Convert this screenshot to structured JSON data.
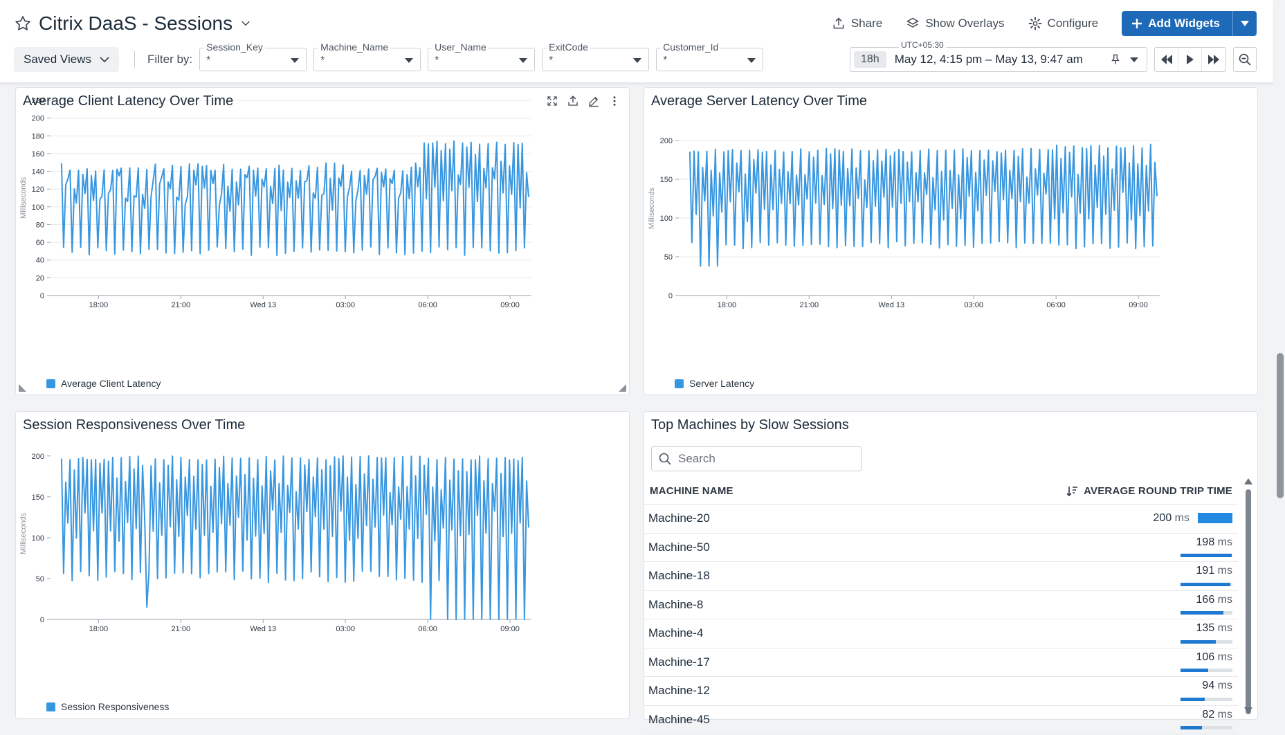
{
  "header": {
    "title": "Citrix DaaS - Sessions",
    "actions": {
      "share": "Share",
      "overlays": "Show Overlays",
      "configure": "Configure",
      "add_widgets": "Add Widgets"
    }
  },
  "filters": {
    "saved_views": "Saved Views",
    "filter_by": "Filter by:",
    "items": [
      {
        "label": "Session_Key",
        "value": "*"
      },
      {
        "label": "Machine_Name",
        "value": "*"
      },
      {
        "label": "User_Name",
        "value": "*"
      },
      {
        "label": "ExitCode",
        "value": "*"
      },
      {
        "label": "Customer_Id",
        "value": "*"
      }
    ]
  },
  "timeframe": {
    "timezone": "UTC+05:30",
    "duration": "18h",
    "range": "May 12, 4:15 pm – May 13, 9:47 am"
  },
  "colors": {
    "accent": "#1e6ab8",
    "series": "#3796e0"
  },
  "widgets": {
    "client": {
      "title": "Average Client Latency Over Time",
      "legend": "Average Client Latency",
      "ylabel": "Milliseconds"
    },
    "server": {
      "title": "Average Server Latency Over Time",
      "legend": "Server Latency",
      "ylabel": "Milliseconds"
    },
    "responsiveness": {
      "title": "Session Responsiveness Over Time",
      "legend": "Session Responsiveness",
      "ylabel": "Milliseconds"
    },
    "machines": {
      "title": "Top Machines by Slow Sessions",
      "search_placeholder": "Search",
      "col_name": "MACHINE NAME",
      "col_value": "AVERAGE ROUND TRIP TIME",
      "unit": "ms",
      "rows": [
        {
          "name": "Machine-20",
          "value": "200",
          "fraction": 1.0
        },
        {
          "name": "Machine-50",
          "value": "198",
          "fraction": 0.99
        },
        {
          "name": "Machine-18",
          "value": "191",
          "fraction": 0.955
        },
        {
          "name": "Machine-8",
          "value": "166",
          "fraction": 0.83
        },
        {
          "name": "Machine-4",
          "value": "135",
          "fraction": 0.675
        },
        {
          "name": "Machine-17",
          "value": "106",
          "fraction": 0.53
        },
        {
          "name": "Machine-12",
          "value": "94",
          "fraction": 0.47
        },
        {
          "name": "Machine-45",
          "value": "82",
          "fraction": 0.41
        }
      ]
    }
  },
  "chart_data": [
    {
      "id": "client",
      "type": "line",
      "title": "Average Client Latency Over Time",
      "ylabel": "Milliseconds",
      "ylim": [
        0,
        220
      ],
      "yticks": [
        0,
        20,
        40,
        60,
        80,
        100,
        120,
        140,
        160,
        180,
        200,
        220
      ],
      "xlim": [
        0,
        17.53
      ],
      "xtick_labels": [
        "18:00",
        "21:00",
        "Wed 13",
        "03:00",
        "06:00",
        "09:00"
      ],
      "xtick_values": [
        1.75,
        4.75,
        7.75,
        10.75,
        13.75,
        16.75
      ],
      "grid": true,
      "series": [
        {
          "name": "Average Client Latency",
          "pattern": {
            "points": 220,
            "low": [
              45,
              55
            ],
            "high": [
              140,
              150
            ],
            "late_high": [
              170,
              175
            ],
            "late_from": 13.6
          }
        }
      ]
    },
    {
      "id": "server",
      "type": "line",
      "title": "Average Server Latency Over Time",
      "ylabel": "Milliseconds",
      "ylim": [
        0,
        225
      ],
      "yticks": [
        0,
        50,
        100,
        150,
        200
      ],
      "xlim": [
        0,
        17.53
      ],
      "xtick_labels": [
        "18:00",
        "21:00",
        "Wed 13",
        "03:00",
        "06:00",
        "09:00"
      ],
      "xtick_values": [
        1.75,
        4.75,
        7.75,
        10.75,
        13.75,
        16.75
      ],
      "grid": true,
      "series": [
        {
          "name": "Server Latency",
          "pattern": {
            "points": 220,
            "low": [
              60,
              70
            ],
            "high": [
              185,
              190
            ],
            "late_high": [
              190,
              195
            ],
            "late_from": 13.5
          }
        }
      ]
    },
    {
      "id": "responsiveness",
      "type": "line",
      "title": "Session Responsiveness Over Time",
      "ylabel": "Milliseconds",
      "ylim": [
        0,
        210
      ],
      "yticks": [
        0,
        50,
        100,
        150,
        200
      ],
      "xlim": [
        0,
        17.53
      ],
      "xtick_labels": [
        "18:00",
        "21:00",
        "Wed 13",
        "03:00",
        "06:00",
        "09:00"
      ],
      "xtick_values": [
        1.75,
        4.75,
        7.75,
        10.75,
        13.75,
        16.75
      ],
      "grid": false,
      "series": [
        {
          "name": "Session Responsiveness",
          "pattern": {
            "points": 220,
            "low": [
              45,
              60
            ],
            "high": [
              195,
              200
            ],
            "late_high": [
              195,
              200
            ],
            "late_from": 13.7
          }
        }
      ]
    }
  ]
}
